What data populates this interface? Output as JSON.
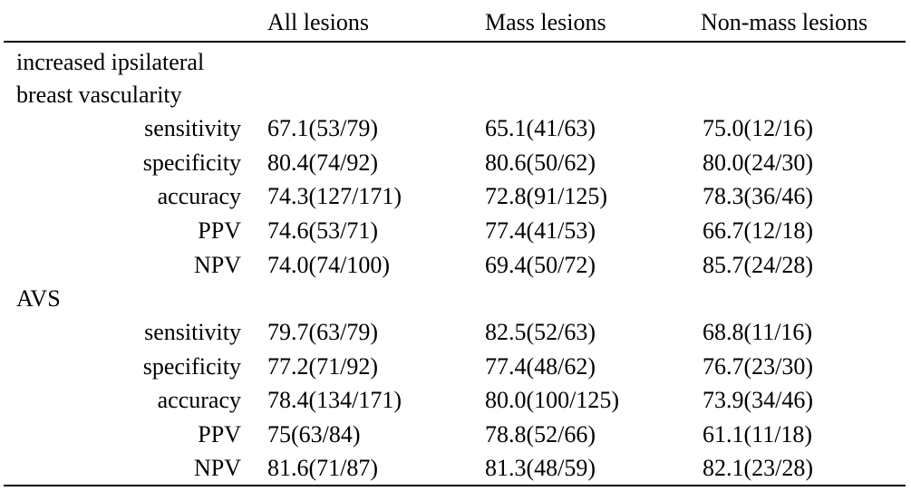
{
  "table": {
    "headers": {
      "all": "All lesions",
      "mass": "Mass lesions",
      "nonmass": "Non-mass lesions"
    },
    "groups": [
      {
        "label_line1": "increased ipsilateral",
        "label_line2": "breast vascularity",
        "rows": [
          {
            "metric": "sensitivity",
            "all": "67.1(53/79)",
            "mass": "65.1(41/63)",
            "nonmass": "75.0(12/16)"
          },
          {
            "metric": "specificity",
            "all": "80.4(74/92)",
            "mass": "80.6(50/62)",
            "nonmass": "80.0(24/30)"
          },
          {
            "metric": "accuracy",
            "all": "74.3(127/171)",
            "mass": "72.8(91/125)",
            "nonmass": "78.3(36/46)"
          },
          {
            "metric": "PPV",
            "all": "74.6(53/71)",
            "mass": "77.4(41/53)",
            "nonmass": "66.7(12/18)"
          },
          {
            "metric": "NPV",
            "all": "74.0(74/100)",
            "mass": "69.4(50/72)",
            "nonmass": "85.7(24/28)"
          }
        ]
      },
      {
        "label_line1": "AVS",
        "rows": [
          {
            "metric": "sensitivity",
            "all": "79.7(63/79)",
            "mass": "82.5(52/63)",
            "nonmass": "68.8(11/16)"
          },
          {
            "metric": "specificity",
            "all": "77.2(71/92)",
            "mass": "77.4(48/62)",
            "nonmass": "76.7(23/30)"
          },
          {
            "metric": "accuracy",
            "all": "78.4(134/171)",
            "mass": "80.0(100/125)",
            "nonmass": "73.9(34/46)"
          },
          {
            "metric": "PPV",
            "all": "75(63/84)",
            "mass": "78.8(52/66)",
            "nonmass": "61.1(11/18)"
          },
          {
            "metric": "NPV",
            "all": "81.6(71/87)",
            "mass": "81.3(48/59)",
            "nonmass": "82.1(23/28)"
          }
        ]
      }
    ]
  }
}
